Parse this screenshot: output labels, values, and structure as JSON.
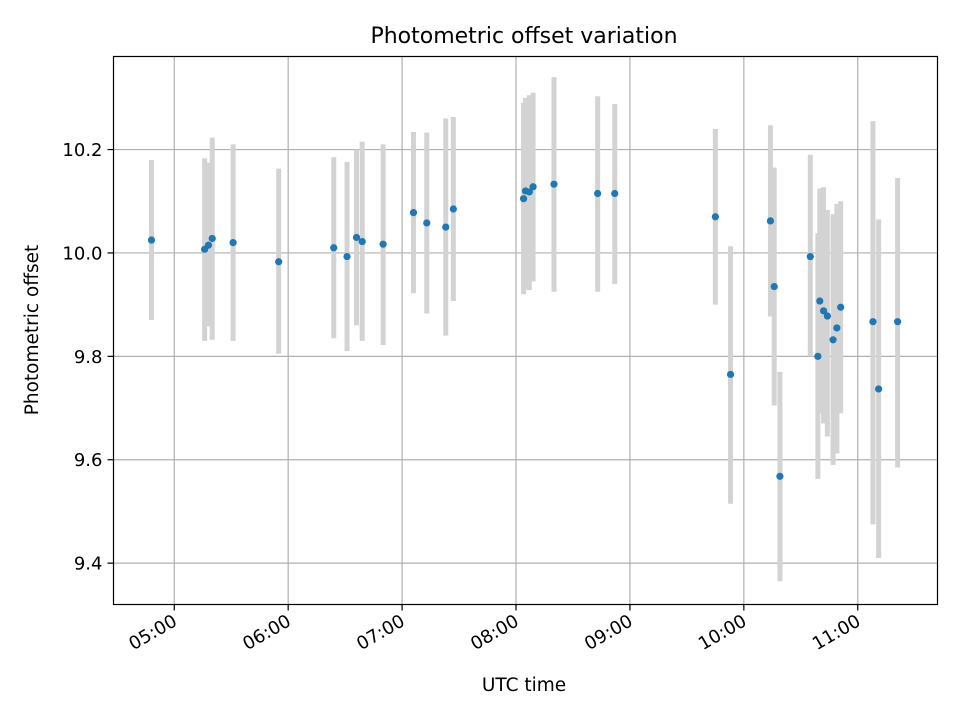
{
  "chart_data": {
    "type": "scatter",
    "title": "Photometric offset variation",
    "xlabel": "UTC time",
    "ylabel": "Photometric offset",
    "x_tick_labels": [
      "05:00",
      "06:00",
      "07:00",
      "08:00",
      "09:00",
      "10:00",
      "11:00"
    ],
    "x_tick_hours": [
      5,
      6,
      7,
      8,
      9,
      10,
      11
    ],
    "y_ticks": [
      9.4,
      9.6,
      9.8,
      10.0,
      10.2
    ],
    "y_tick_labels": [
      "9.4",
      "9.6",
      "9.8",
      "10.0",
      "10.2"
    ],
    "xlim": [
      "04:28",
      "11:42"
    ],
    "ylim": [
      9.32,
      10.38
    ],
    "grid": true,
    "point_color": "#1f77b4",
    "errorbar_color": "#d3d3d3",
    "points": [
      {
        "time": "04:48",
        "y": 10.025,
        "lo": 9.87,
        "hi": 10.18
      },
      {
        "time": "05:16",
        "y": 10.007,
        "lo": 9.83,
        "hi": 10.183
      },
      {
        "time": "05:18",
        "y": 10.015,
        "lo": 9.858,
        "hi": 10.175
      },
      {
        "time": "05:20",
        "y": 10.028,
        "lo": 9.832,
        "hi": 10.223
      },
      {
        "time": "05:31",
        "y": 10.02,
        "lo": 9.83,
        "hi": 10.21
      },
      {
        "time": "05:55",
        "y": 9.983,
        "lo": 9.805,
        "hi": 10.163
      },
      {
        "time": "06:24",
        "y": 10.01,
        "lo": 9.835,
        "hi": 10.185
      },
      {
        "time": "06:31",
        "y": 9.993,
        "lo": 9.81,
        "hi": 10.176
      },
      {
        "time": "06:36",
        "y": 10.03,
        "lo": 9.86,
        "hi": 10.2
      },
      {
        "time": "06:39",
        "y": 10.022,
        "lo": 9.83,
        "hi": 10.215
      },
      {
        "time": "06:50",
        "y": 10.017,
        "lo": 9.822,
        "hi": 10.21
      },
      {
        "time": "07:06",
        "y": 10.078,
        "lo": 9.922,
        "hi": 10.234
      },
      {
        "time": "07:13",
        "y": 10.058,
        "lo": 9.883,
        "hi": 10.233
      },
      {
        "time": "07:23",
        "y": 10.05,
        "lo": 9.84,
        "hi": 10.26
      },
      {
        "time": "07:27",
        "y": 10.085,
        "lo": 9.907,
        "hi": 10.263
      },
      {
        "time": "08:04",
        "y": 10.105,
        "lo": 9.92,
        "hi": 10.29
      },
      {
        "time": "08:05",
        "y": 10.12,
        "lo": 9.93,
        "hi": 10.3
      },
      {
        "time": "08:07",
        "y": 10.118,
        "lo": 9.928,
        "hi": 10.305
      },
      {
        "time": "08:09",
        "y": 10.128,
        "lo": 9.945,
        "hi": 10.31
      },
      {
        "time": "08:20",
        "y": 10.133,
        "lo": 9.925,
        "hi": 10.34
      },
      {
        "time": "08:43",
        "y": 10.115,
        "lo": 9.925,
        "hi": 10.303
      },
      {
        "time": "08:52",
        "y": 10.115,
        "lo": 9.94,
        "hi": 10.288
      },
      {
        "time": "09:45",
        "y": 10.07,
        "lo": 9.9,
        "hi": 10.24
      },
      {
        "time": "09:53",
        "y": 9.765,
        "lo": 9.515,
        "hi": 10.013
      },
      {
        "time": "10:14",
        "y": 10.062,
        "lo": 9.877,
        "hi": 10.247
      },
      {
        "time": "10:16",
        "y": 9.935,
        "lo": 9.705,
        "hi": 10.165
      },
      {
        "time": "10:19",
        "y": 9.568,
        "lo": 9.365,
        "hi": 9.77
      },
      {
        "time": "10:35",
        "y": 9.993,
        "lo": 9.8,
        "hi": 10.19
      },
      {
        "time": "10:39",
        "y": 9.8,
        "lo": 9.563,
        "hi": 10.038
      },
      {
        "time": "10:40",
        "y": 9.907,
        "lo": 9.69,
        "hi": 10.125
      },
      {
        "time": "10:42",
        "y": 9.888,
        "lo": 9.67,
        "hi": 10.127
      },
      {
        "time": "10:44",
        "y": 9.878,
        "lo": 9.645,
        "hi": 10.083
      },
      {
        "time": "10:47",
        "y": 9.832,
        "lo": 9.59,
        "hi": 10.075
      },
      {
        "time": "10:49",
        "y": 9.855,
        "lo": 9.612,
        "hi": 10.095
      },
      {
        "time": "10:51",
        "y": 9.895,
        "lo": 9.69,
        "hi": 10.1
      },
      {
        "time": "11:08",
        "y": 9.867,
        "lo": 9.475,
        "hi": 10.255
      },
      {
        "time": "11:11",
        "y": 9.737,
        "lo": 9.41,
        "hi": 10.065
      },
      {
        "time": "11:21",
        "y": 9.867,
        "lo": 9.585,
        "hi": 10.145
      }
    ]
  }
}
